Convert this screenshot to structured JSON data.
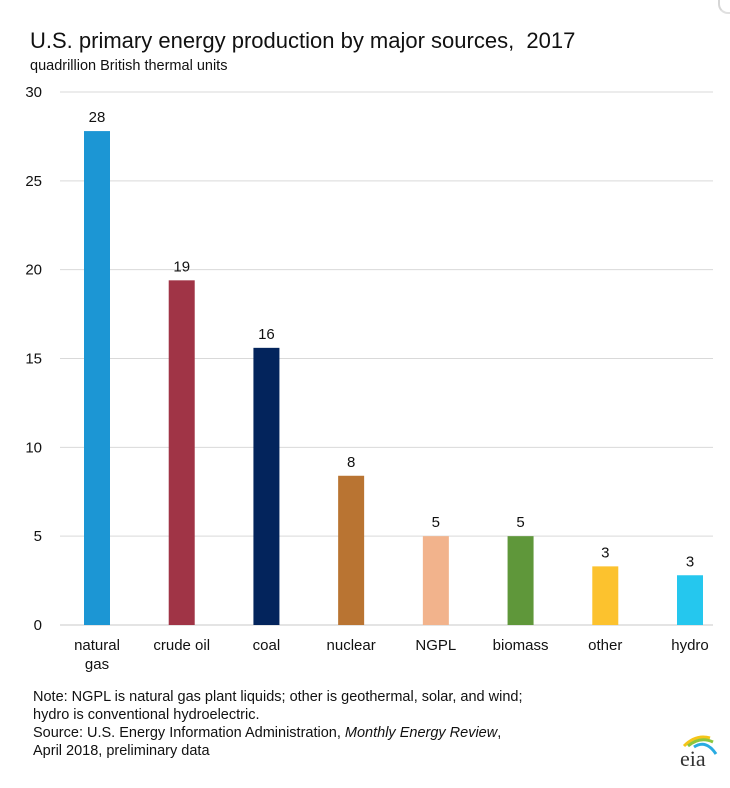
{
  "chart_data": {
    "type": "bar",
    "title": "U.S. primary energy production by major sources,  2017",
    "subtitle": "quadrillion British thermal units",
    "xlabel": "",
    "ylabel": "",
    "ylim": [
      0,
      30
    ],
    "yticks": [
      0,
      5,
      10,
      15,
      20,
      25,
      30
    ],
    "grid": true,
    "legend": "none",
    "categories": [
      {
        "label": [
          "natural",
          "gas"
        ],
        "value": 27.8,
        "data_label": "28",
        "color": "#1c96d4"
      },
      {
        "label": [
          "crude oil"
        ],
        "value": 19.4,
        "data_label": "19",
        "color": "#a03446"
      },
      {
        "label": [
          "coal"
        ],
        "value": 15.6,
        "data_label": "16",
        "color": "#03245c"
      },
      {
        "label": [
          "nuclear"
        ],
        "value": 8.4,
        "data_label": "8",
        "color": "#b97432"
      },
      {
        "label": [
          "NGPL"
        ],
        "value": 5.0,
        "data_label": "5",
        "color": "#f2b38c"
      },
      {
        "label": [
          "biomass"
        ],
        "value": 5.0,
        "data_label": "5",
        "color": "#5f973a"
      },
      {
        "label": [
          "other"
        ],
        "value": 3.3,
        "data_label": "3",
        "color": "#fcc22e"
      },
      {
        "label": [
          "hydro"
        ],
        "value": 2.8,
        "data_label": "3",
        "color": "#25c7ee"
      }
    ]
  },
  "notes": {
    "line1": "Note: NGPL is natural gas plant liquids; other is geothermal, solar, and wind;",
    "line2": "hydro is conventional hydroelectric.",
    "line3_prefix": "Source: U.S. Energy Information Administration, ",
    "line3_italic": "Monthly Energy Review",
    "line3_suffix": ",",
    "line4": "April 2018, preliminary data"
  },
  "logo": {
    "text": "eia",
    "colors": [
      "#f5c518",
      "#8cc63f",
      "#29abe2"
    ]
  }
}
